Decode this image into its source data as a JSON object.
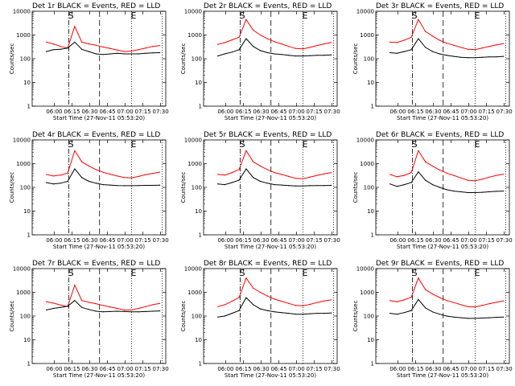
{
  "colors": {
    "events": "#000000",
    "lld": "#ff0000",
    "axes": "#000000",
    "background": "#ffffff"
  },
  "common": {
    "ylabel": "Counts/sec",
    "xlabel": "Start Time (27-Nov-11 05:53:20)",
    "x_ticks": [
      "06:00",
      "06:15",
      "06:30",
      "06:45",
      "07:00",
      "07:15",
      "07:30"
    ],
    "y_ticks": [
      "1",
      "10",
      "100",
      "1000",
      "10000"
    ],
    "markers": {
      "start": "S",
      "end": "E"
    }
  },
  "chart_data": [
    {
      "type": "line",
      "title": "Det 1r BLACK = Events, RED = LLD",
      "yscale": "log",
      "ylim": [
        1,
        10000
      ],
      "x": [
        0,
        6,
        12,
        18,
        24,
        30,
        36,
        42,
        48,
        54,
        60,
        66,
        72,
        78,
        84,
        90,
        96
      ],
      "series": [
        {
          "name": "RED = LLD",
          "color": "#ff0000",
          "values": [
            500,
            420,
            330,
            280,
            2300,
            500,
            420,
            370,
            310,
            270,
            230,
            200,
            210,
            240,
            280,
            330,
            360
          ]
        },
        {
          "name": "BLACK = Events",
          "color": "#000000",
          "values": [
            200,
            240,
            250,
            280,
            500,
            250,
            200,
            160,
            150,
            160,
            170,
            160,
            160,
            160,
            170,
            175,
            180
          ]
        }
      ]
    },
    {
      "type": "line",
      "title": "Det 2r BLACK = Events, RED = LLD",
      "yscale": "log",
      "ylim": [
        1,
        10000
      ],
      "x": [
        0,
        6,
        12,
        18,
        24,
        30,
        36,
        42,
        48,
        54,
        60,
        66,
        72,
        78,
        84,
        90,
        96
      ],
      "series": [
        {
          "name": "RED = LLD",
          "color": "#ff0000",
          "values": [
            400,
            480,
            620,
            800,
            4500,
            1600,
            1000,
            700,
            520,
            420,
            330,
            270,
            260,
            300,
            360,
            420,
            480
          ]
        },
        {
          "name": "BLACK = Events",
          "color": "#000000",
          "values": [
            130,
            160,
            190,
            240,
            700,
            330,
            220,
            180,
            160,
            150,
            140,
            130,
            130,
            135,
            140,
            140,
            145
          ]
        }
      ]
    },
    {
      "type": "line",
      "title": "Det 3r BLACK = Events, RED = LLD",
      "yscale": "log",
      "ylim": [
        1,
        10000
      ],
      "x": [
        0,
        6,
        12,
        18,
        24,
        30,
        36,
        42,
        48,
        54,
        60,
        66,
        72,
        78,
        84,
        90,
        96
      ],
      "series": [
        {
          "name": "RED = LLD",
          "color": "#ff0000",
          "values": [
            500,
            480,
            600,
            800,
            4500,
            1400,
            900,
            600,
            450,
            370,
            300,
            250,
            240,
            280,
            330,
            380,
            430
          ]
        },
        {
          "name": "BLACK = Events",
          "color": "#000000",
          "values": [
            180,
            170,
            200,
            240,
            700,
            300,
            200,
            160,
            140,
            125,
            115,
            110,
            110,
            115,
            120,
            120,
            125
          ]
        }
      ]
    },
    {
      "type": "line",
      "title": "Det 4r BLACK = Events, RED = LLD",
      "yscale": "log",
      "ylim": [
        1,
        10000
      ],
      "x": [
        0,
        6,
        12,
        18,
        24,
        30,
        36,
        42,
        48,
        54,
        60,
        66,
        72,
        78,
        84,
        90,
        96
      ],
      "series": [
        {
          "name": "RED = LLD",
          "color": "#ff0000",
          "values": [
            350,
            300,
            330,
            400,
            3500,
            1200,
            800,
            560,
            430,
            360,
            300,
            260,
            250,
            290,
            340,
            390,
            440
          ]
        },
        {
          "name": "BLACK = Events",
          "color": "#000000",
          "values": [
            160,
            140,
            150,
            180,
            600,
            260,
            180,
            150,
            130,
            125,
            120,
            118,
            118,
            120,
            122,
            122,
            124
          ]
        }
      ]
    },
    {
      "type": "line",
      "title": "Det 5r BLACK = Events, RED = LLD",
      "yscale": "log",
      "ylim": [
        1,
        10000
      ],
      "x": [
        0,
        6,
        12,
        18,
        24,
        30,
        36,
        42,
        48,
        54,
        60,
        66,
        72,
        78,
        84,
        90,
        96
      ],
      "series": [
        {
          "name": "RED = LLD",
          "color": "#ff0000",
          "values": [
            350,
            330,
            420,
            560,
            3500,
            1200,
            800,
            560,
            420,
            350,
            290,
            240,
            230,
            270,
            320,
            370,
            420
          ]
        },
        {
          "name": "BLACK = Events",
          "color": "#000000",
          "values": [
            140,
            130,
            160,
            200,
            600,
            260,
            180,
            150,
            130,
            125,
            120,
            115,
            115,
            118,
            120,
            120,
            122
          ]
        }
      ]
    },
    {
      "type": "line",
      "title": "Det 6r BLACK = Events, RED = LLD",
      "yscale": "log",
      "ylim": [
        1,
        10000
      ],
      "x": [
        0,
        6,
        12,
        18,
        24,
        30,
        36,
        42,
        48,
        54,
        60,
        66,
        72,
        78,
        84,
        90,
        96
      ],
      "series": [
        {
          "name": "RED = LLD",
          "color": "#ff0000",
          "values": [
            350,
            280,
            320,
            420,
            3500,
            1200,
            800,
            540,
            400,
            320,
            250,
            200,
            190,
            220,
            270,
            320,
            360
          ]
        },
        {
          "name": "BLACK = Events",
          "color": "#000000",
          "values": [
            140,
            110,
            130,
            160,
            450,
            200,
            130,
            100,
            80,
            70,
            65,
            60,
            60,
            62,
            65,
            68,
            70
          ]
        }
      ]
    },
    {
      "type": "line",
      "title": "Det 7r BLACK = Events, RED = LLD",
      "yscale": "log",
      "ylim": [
        1,
        10000
      ],
      "x": [
        0,
        6,
        12,
        18,
        24,
        30,
        36,
        42,
        48,
        54,
        60,
        66,
        72,
        78,
        84,
        90,
        96
      ],
      "series": [
        {
          "name": "RED = LLD",
          "color": "#ff0000",
          "values": [
            400,
            350,
            290,
            250,
            2000,
            450,
            380,
            330,
            280,
            240,
            210,
            180,
            180,
            210,
            250,
            300,
            340
          ]
        },
        {
          "name": "BLACK = Events",
          "color": "#000000",
          "values": [
            180,
            210,
            230,
            260,
            450,
            230,
            190,
            160,
            150,
            155,
            160,
            155,
            150,
            150,
            155,
            160,
            165
          ]
        }
      ]
    },
    {
      "type": "line",
      "title": "Det 8r BLACK = Events, RED = LLD",
      "yscale": "log",
      "ylim": [
        1,
        10000
      ],
      "x": [
        0,
        6,
        12,
        18,
        24,
        30,
        36,
        42,
        48,
        54,
        60,
        66,
        72,
        78,
        84,
        90,
        96
      ],
      "series": [
        {
          "name": "RED = LLD",
          "color": "#ff0000",
          "values": [
            250,
            300,
            420,
            600,
            4000,
            1500,
            1000,
            700,
            520,
            420,
            340,
            280,
            270,
            310,
            370,
            430,
            480
          ]
        },
        {
          "name": "BLACK = Events",
          "color": "#000000",
          "values": [
            90,
            100,
            130,
            170,
            600,
            300,
            200,
            170,
            150,
            140,
            130,
            120,
            120,
            125,
            130,
            130,
            135
          ]
        }
      ]
    },
    {
      "type": "line",
      "title": "Det 9r BLACK = Events, RED = LLD",
      "yscale": "log",
      "ylim": [
        1,
        10000
      ],
      "x": [
        0,
        6,
        12,
        18,
        24,
        30,
        36,
        42,
        48,
        54,
        60,
        66,
        72,
        78,
        84,
        90,
        96
      ],
      "series": [
        {
          "name": "RED = LLD",
          "color": "#ff0000",
          "values": [
            450,
            400,
            480,
            620,
            4000,
            1300,
            850,
            600,
            450,
            370,
            300,
            250,
            240,
            280,
            330,
            380,
            430
          ]
        },
        {
          "name": "BLACK = Events",
          "color": "#000000",
          "values": [
            130,
            120,
            140,
            170,
            500,
            220,
            150,
            120,
            100,
            90,
            85,
            80,
            80,
            82,
            85,
            88,
            90
          ]
        }
      ]
    }
  ]
}
